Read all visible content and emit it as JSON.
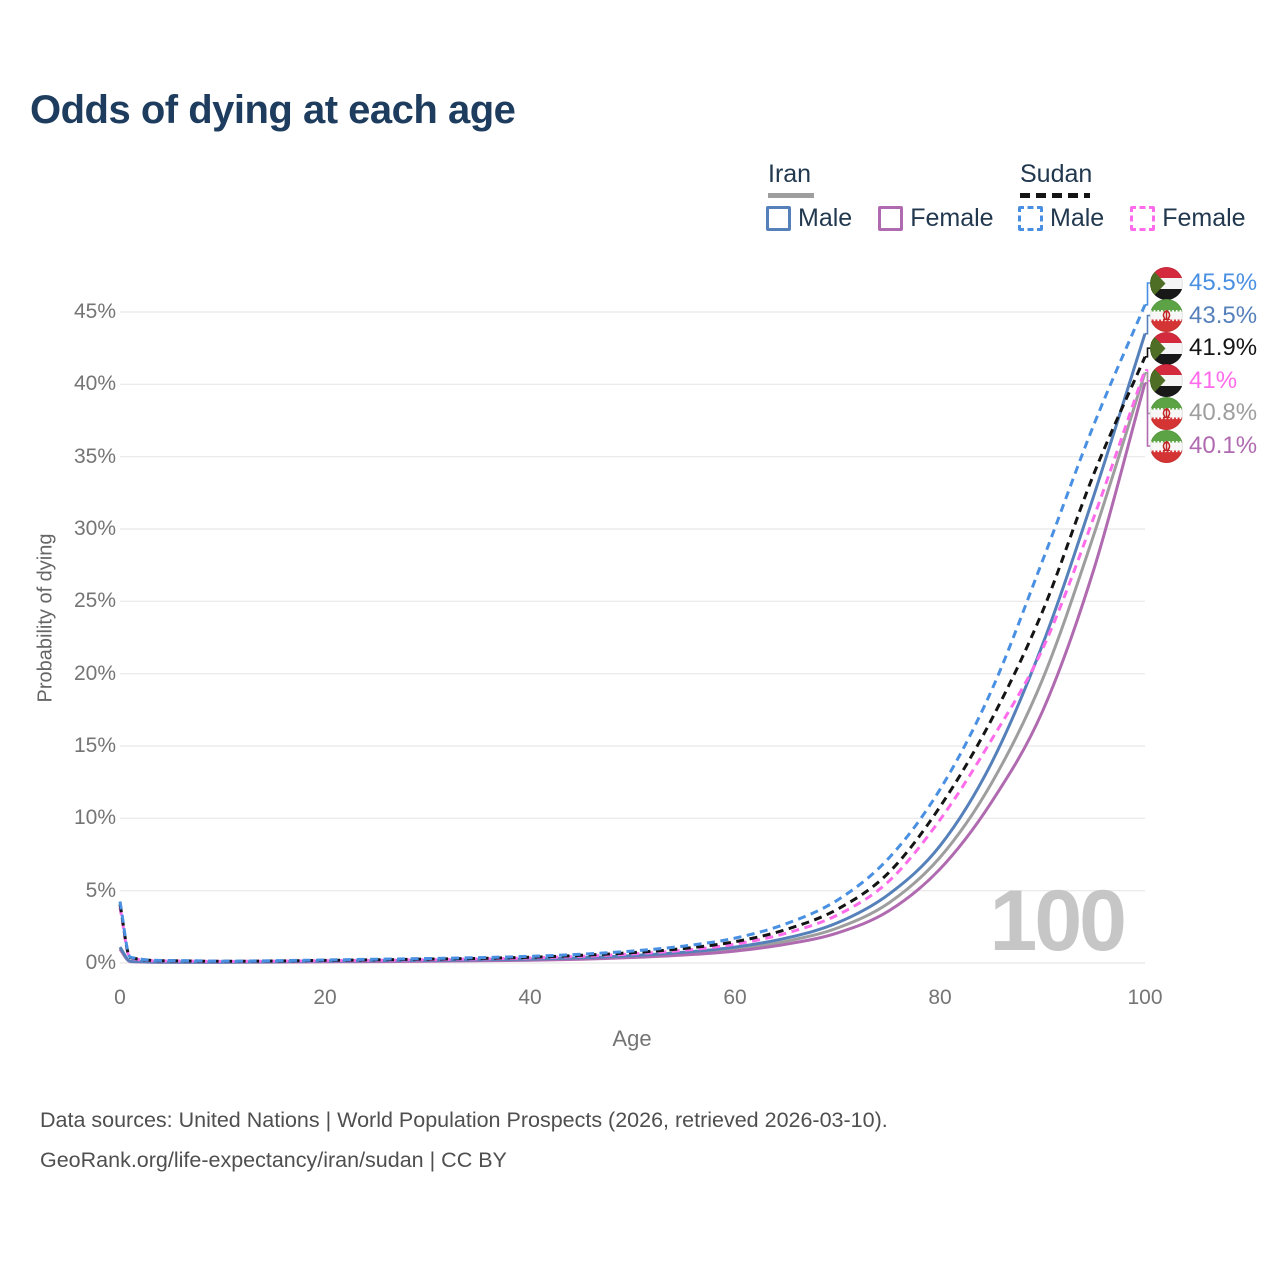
{
  "title": "Odds of dying at each age",
  "watermark_hover_age": "100",
  "legend": {
    "groups": [
      {
        "name": "Iran",
        "line_style": "solid",
        "underline_color": "#9e9e9e",
        "items": [
          {
            "label": "Male",
            "color": "#5580ba"
          },
          {
            "label": "Female",
            "color": "#b06ab0"
          }
        ]
      },
      {
        "name": "Sudan",
        "line_style": "dashed",
        "underline_color": "#141414",
        "items": [
          {
            "label": "Male",
            "color": "#4a90e2"
          },
          {
            "label": "Female",
            "color": "#ff6ceb"
          }
        ]
      }
    ]
  },
  "end_labels": [
    {
      "text": "45.5%",
      "color": "#4a90e2",
      "flag": "sudan",
      "series": "sudan_male"
    },
    {
      "text": "43.5%",
      "color": "#5580ba",
      "flag": "iran",
      "series": "iran_male"
    },
    {
      "text": "41.9%",
      "color": "#141414",
      "flag": "sudan",
      "series": "sudan_all"
    },
    {
      "text": "41%",
      "color": "#ff6ceb",
      "flag": "sudan",
      "series": "sudan_female"
    },
    {
      "text": "40.8%",
      "color": "#9e9e9e",
      "flag": "iran",
      "series": "iran_all"
    },
    {
      "text": "40.1%",
      "color": "#b06ab0",
      "flag": "iran",
      "series": "iran_female"
    }
  ],
  "chart_data": {
    "type": "line",
    "title": "Odds of dying at each age",
    "xlabel": "Age",
    "ylabel": "Probability of dying",
    "xlim": [
      0,
      100
    ],
    "ylim": [
      0,
      45
    ],
    "grid": "horizontal",
    "legend_position": "top-right",
    "xticks": [
      0,
      20,
      40,
      60,
      80,
      100
    ],
    "yticks": [
      0,
      5,
      10,
      15,
      20,
      25,
      30,
      35,
      40,
      45
    ],
    "ytick_labels": [
      "0%",
      "5%",
      "10%",
      "15%",
      "20%",
      "25%",
      "30%",
      "35%",
      "40%",
      "45%"
    ],
    "x": [
      0,
      1,
      5,
      10,
      15,
      20,
      25,
      30,
      35,
      40,
      45,
      50,
      55,
      60,
      65,
      70,
      75,
      80,
      85,
      90,
      95,
      100
    ],
    "series": [
      {
        "key": "iran_all",
        "name": "Iran (all)",
        "country": "Iran",
        "sex": "All",
        "color": "#9e9e9e",
        "dash": "solid",
        "end_label": "40.8%",
        "values": [
          1.05,
          0.11,
          0.05,
          0.05,
          0.07,
          0.1,
          0.12,
          0.14,
          0.18,
          0.22,
          0.31,
          0.44,
          0.63,
          0.94,
          1.5,
          2.42,
          4.15,
          7.3,
          12.4,
          19.6,
          29.6,
          40.8
        ]
      },
      {
        "key": "iran_female",
        "name": "Iran Female",
        "country": "Iran",
        "sex": "Female",
        "color": "#b06ab0",
        "dash": "solid",
        "end_label": "40.1%",
        "values": [
          0.95,
          0.1,
          0.05,
          0.05,
          0.06,
          0.08,
          0.1,
          0.12,
          0.15,
          0.19,
          0.26,
          0.38,
          0.55,
          0.82,
          1.3,
          2.08,
          3.6,
          6.5,
          11.1,
          17.4,
          27.2,
          40.1
        ]
      },
      {
        "key": "iran_male",
        "name": "Iran Male",
        "country": "Iran",
        "sex": "Male",
        "color": "#5580ba",
        "dash": "solid",
        "end_label": "43.5%",
        "values": [
          1.1,
          0.12,
          0.06,
          0.06,
          0.09,
          0.13,
          0.16,
          0.18,
          0.22,
          0.27,
          0.36,
          0.51,
          0.74,
          1.1,
          1.72,
          2.78,
          4.75,
          8.1,
          13.8,
          22.0,
          32.3,
          43.5
        ]
      },
      {
        "key": "sudan_female",
        "name": "Sudan Female",
        "country": "Sudan",
        "sex": "Female",
        "color": "#ff6ceb",
        "dash": "dashed",
        "end_label": "41%",
        "values": [
          3.85,
          0.34,
          0.14,
          0.11,
          0.13,
          0.16,
          0.19,
          0.23,
          0.28,
          0.35,
          0.46,
          0.63,
          0.88,
          1.3,
          2.06,
          3.32,
          5.65,
          9.9,
          15.4,
          21.7,
          30.8,
          41.0
        ]
      },
      {
        "key": "sudan_all",
        "name": "Sudan (all)",
        "country": "Sudan",
        "sex": "All",
        "color": "#141414",
        "dash": "dashed",
        "end_label": "41.9%",
        "values": [
          4.05,
          0.37,
          0.15,
          0.12,
          0.14,
          0.18,
          0.22,
          0.27,
          0.32,
          0.4,
          0.53,
          0.72,
          1.0,
          1.47,
          2.32,
          3.72,
          6.25,
          10.8,
          16.8,
          24.3,
          33.8,
          41.9
        ]
      },
      {
        "key": "sudan_male",
        "name": "Sudan Male",
        "country": "Sudan",
        "sex": "Male",
        "color": "#4a90e2",
        "dash": "dashed",
        "end_label": "45.5%",
        "values": [
          4.25,
          0.4,
          0.17,
          0.13,
          0.16,
          0.21,
          0.26,
          0.31,
          0.37,
          0.46,
          0.61,
          0.83,
          1.17,
          1.72,
          2.72,
          4.35,
          7.25,
          12.0,
          18.8,
          27.8,
          37.2,
          45.5
        ]
      }
    ]
  },
  "footer": {
    "line1": "Data sources: United Nations | World Population Prospects (2026, retrieved 2026-03-10).",
    "line2": "GeoRank.org/life-expectancy/iran/sudan | CC BY"
  }
}
